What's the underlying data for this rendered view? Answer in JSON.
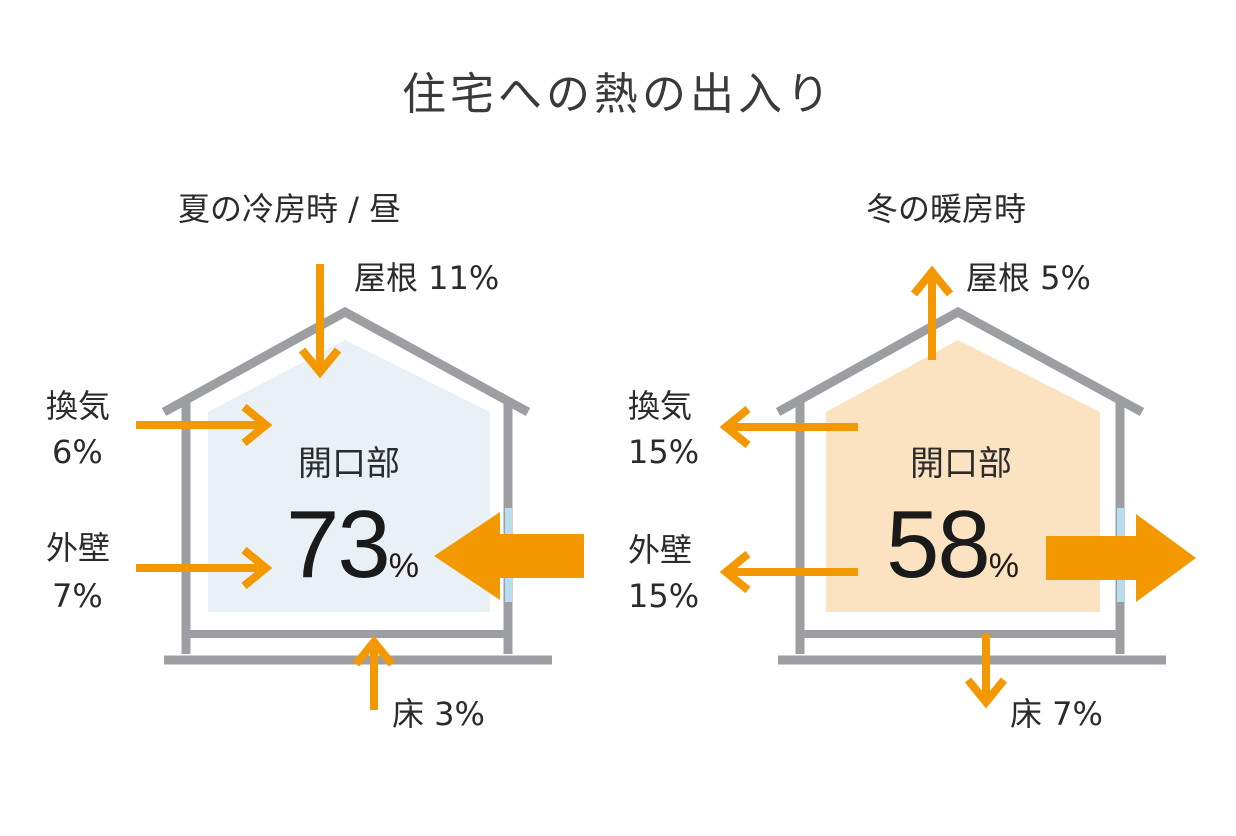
{
  "title": "住宅への熱の出入り",
  "summer": {
    "heading": "夏の冷房時 / 昼",
    "roof": "屋根 11%",
    "vent": "換気",
    "vent_pct": "6%",
    "wall": "外壁",
    "wall_pct": "7%",
    "floor": "床 3%",
    "opening": "開口部",
    "opening_value": "73",
    "percent": "%",
    "fill_color": "#e9f1f6"
  },
  "winter": {
    "heading": "冬の暖房時",
    "roof": "屋根 5%",
    "vent": "換気",
    "vent_pct": "15%",
    "wall": "外壁",
    "wall_pct": "15%",
    "floor": "床 7%",
    "opening": "開口部",
    "opening_value": "58",
    "percent": "%",
    "fill_color": "#fbe3c2"
  },
  "colors": {
    "arrow": "#f39800",
    "house": "#9d9ea2",
    "window": "#b9dcef"
  }
}
